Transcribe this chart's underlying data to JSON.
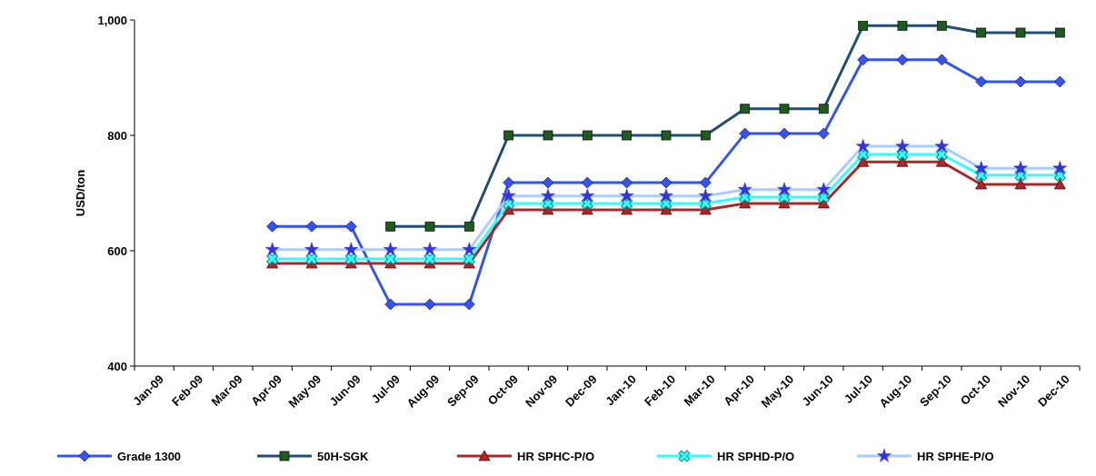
{
  "chart_data": {
    "type": "line",
    "ylabel": "USD/ton",
    "categories": [
      "Jan-09",
      "Feb-09",
      "Mar-09",
      "Apr-09",
      "May-09",
      "Jun-09",
      "Jul-09",
      "Aug-09",
      "Sep-09",
      "Oct-09",
      "Nov-09",
      "Dec-09",
      "Jan-10",
      "Feb-10",
      "Mar-10",
      "Apr-10",
      "May-10",
      "Jun-10",
      "Jul-10",
      "Aug-10",
      "Sep-10",
      "Oct-10",
      "Nov-10",
      "Dec-10"
    ],
    "series": [
      {
        "name": "Grade 1300",
        "color": "#3355ee",
        "marker": "diamond",
        "values": [
          null,
          null,
          null,
          642,
          642,
          642,
          507,
          507,
          507,
          718,
          718,
          718,
          718,
          718,
          718,
          803,
          803,
          803,
          931,
          931,
          931,
          893,
          893,
          893
        ]
      },
      {
        "name": "50H-SGK",
        "color": "#1f4e79",
        "marker": "square",
        "values": [
          null,
          null,
          null,
          null,
          null,
          null,
          642,
          642,
          642,
          800,
          800,
          800,
          800,
          800,
          800,
          846,
          846,
          846,
          990,
          990,
          990,
          978,
          978,
          978
        ]
      },
      {
        "name": "HR SPHC-P/O",
        "color": "#a52a2a",
        "marker": "triangle",
        "values": [
          null,
          null,
          null,
          578,
          578,
          578,
          578,
          578,
          578,
          671,
          671,
          671,
          671,
          671,
          671,
          682,
          682,
          682,
          754,
          754,
          754,
          715,
          715,
          715
        ]
      },
      {
        "name": "HR SPHD-P/O",
        "color": "#33ffff",
        "marker": "cross",
        "values": [
          null,
          null,
          null,
          586,
          586,
          586,
          586,
          586,
          586,
          682,
          682,
          682,
          682,
          682,
          682,
          693,
          693,
          693,
          767,
          767,
          767,
          731,
          731,
          731
        ]
      },
      {
        "name": "HR SPHE-P/O",
        "color": "#aaccff",
        "marker": "star",
        "values": [
          null,
          null,
          null,
          602,
          602,
          602,
          602,
          602,
          602,
          695,
          695,
          695,
          695,
          695,
          695,
          706,
          706,
          706,
          781,
          781,
          781,
          743,
          743,
          743
        ]
      }
    ],
    "ylim": [
      400,
      1000
    ],
    "yticks": [
      400,
      600,
      800,
      {
        "value": 1000,
        "label": "1,000"
      }
    ],
    "legend": "bottom",
    "line_style": "solid"
  }
}
